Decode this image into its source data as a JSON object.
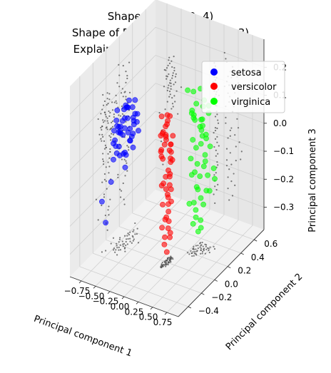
{
  "chart_data": {
    "type": "scatter",
    "title_lines": [
      "Shape of 𝑥: (150, 4)",
      "Shape of PCA transform: (150, 3)",
      "Explained variance ratio: 0.9936"
    ],
    "xlabel": "Principal component 1",
    "ylabel": "Principal component 2",
    "zlabel": "Principal component 3",
    "xlim": [
      -0.95,
      0.95
    ],
    "ylim": [
      -0.55,
      0.75
    ],
    "zlim": [
      -0.38,
      0.3
    ],
    "x_ticks": [
      -0.75,
      -0.5,
      -0.25,
      0.0,
      0.25,
      0.5,
      0.75
    ],
    "x_tick_labels": [
      "−0.75",
      "−0.50",
      "−0.25",
      "0.00",
      "0.25",
      "0.50",
      "0.75"
    ],
    "y_ticks": [
      -0.4,
      -0.2,
      0.0,
      0.2,
      0.4,
      0.6
    ],
    "y_tick_labels": [
      "−0.4",
      "−0.2",
      "0.0",
      "0.2",
      "0.4",
      "0.6"
    ],
    "z_ticks": [
      -0.3,
      -0.2,
      -0.1,
      0.0,
      0.1,
      0.2
    ],
    "z_tick_labels": [
      "−0.3",
      "−0.2",
      "−0.1",
      "0.0",
      "0.1",
      "0.2"
    ],
    "grid": true,
    "legend_position": "top-right",
    "series": [
      {
        "name": "setosa",
        "color": "#0000ff",
        "points": [
          [
            -0.72,
            0.05,
            0.05
          ],
          [
            -0.68,
            0.1,
            0.0
          ],
          [
            -0.74,
            -0.02,
            -0.05
          ],
          [
            -0.66,
            0.15,
            0.08
          ],
          [
            -0.7,
            0.0,
            0.02
          ],
          [
            -0.62,
            0.08,
            -0.02
          ],
          [
            -0.76,
            0.12,
            0.04
          ],
          [
            -0.64,
            -0.05,
            0.06
          ],
          [
            -0.71,
            0.2,
            -0.03
          ],
          [
            -0.67,
            0.03,
            0.1
          ],
          [
            -0.73,
            -0.08,
            0.0
          ],
          [
            -0.6,
            0.12,
            0.03
          ],
          [
            -0.78,
            0.06,
            -0.08
          ],
          [
            -0.65,
            0.18,
            0.05
          ],
          [
            -0.69,
            -0.03,
            -0.02
          ],
          [
            -0.63,
            0.02,
            0.12
          ],
          [
            -0.75,
            0.16,
            0.07
          ],
          [
            -0.61,
            -0.01,
            -0.04
          ],
          [
            -0.72,
            0.22,
            0.01
          ],
          [
            -0.66,
            -0.06,
            0.04
          ],
          [
            -0.7,
            0.09,
            0.09
          ],
          [
            -0.58,
            0.07,
            0.0
          ],
          [
            -0.77,
            0.0,
            0.06
          ],
          [
            -0.64,
            0.14,
            -0.06
          ],
          [
            -0.68,
            -0.1,
            0.02
          ],
          [
            -0.74,
            0.18,
            -0.01
          ],
          [
            -0.62,
            0.04,
            0.07
          ],
          [
            -0.71,
            -0.04,
            0.11
          ],
          [
            -0.66,
            0.11,
            -0.03
          ],
          [
            -0.69,
            0.25,
            0.03
          ],
          [
            -0.6,
            -0.02,
            0.05
          ],
          [
            -0.8,
            0.08,
            0.0
          ],
          [
            -0.67,
            0.06,
            -0.07
          ],
          [
            -0.73,
            0.13,
            0.08
          ],
          [
            -0.63,
            0.19,
            0.02
          ],
          [
            -0.7,
            -0.07,
            -0.01
          ],
          [
            -0.76,
            0.03,
            0.03
          ],
          [
            -0.59,
            0.1,
            0.06
          ],
          [
            -0.65,
            0.0,
            -0.05
          ],
          [
            -0.72,
            0.15,
            0.1
          ],
          [
            -0.68,
            0.02,
            0.01
          ],
          [
            -0.74,
            -0.06,
            0.04
          ],
          [
            -0.85,
            -0.15,
            -0.2
          ],
          [
            -0.82,
            -0.12,
            -0.28
          ],
          [
            -0.5,
            0.1,
            0.02
          ],
          [
            -0.88,
            0.05,
            -0.1
          ],
          [
            -0.84,
            -0.02,
            -0.16
          ],
          [
            -0.56,
            -0.05,
            -0.08
          ],
          [
            -0.79,
            0.3,
            0.06
          ],
          [
            -0.62,
            -0.12,
            0.08
          ]
        ]
      },
      {
        "name": "versicolor",
        "color": "#ff0000",
        "points": [
          [
            0.08,
            0.02,
            0.05
          ],
          [
            0.1,
            -0.05,
            0.0
          ],
          [
            0.12,
            0.05,
            -0.02
          ],
          [
            0.06,
            -0.02,
            0.08
          ],
          [
            0.14,
            0.0,
            -0.05
          ],
          [
            0.09,
            0.08,
            0.02
          ],
          [
            0.11,
            -0.08,
            0.04
          ],
          [
            0.13,
            0.03,
            -0.08
          ],
          [
            0.07,
            -0.04,
            -0.1
          ],
          [
            0.15,
            0.06,
            0.06
          ],
          [
            0.1,
            0.0,
            -0.12
          ],
          [
            0.12,
            -0.06,
            0.1
          ],
          [
            0.08,
            0.04,
            -0.15
          ],
          [
            0.14,
            -0.02,
            0.12
          ],
          [
            0.11,
            0.07,
            -0.18
          ],
          [
            0.09,
            -0.07,
            0.03
          ],
          [
            0.13,
            0.01,
            -0.2
          ],
          [
            0.07,
            0.05,
            0.11
          ],
          [
            0.12,
            -0.03,
            -0.22
          ],
          [
            0.1,
            0.02,
            0.14
          ],
          [
            0.15,
            -0.05,
            -0.06
          ],
          [
            0.08,
            0.06,
            -0.25
          ],
          [
            0.11,
            -0.01,
            0.07
          ],
          [
            0.14,
            0.03,
            -0.28
          ],
          [
            0.09,
            -0.06,
            0.01
          ],
          [
            0.12,
            0.04,
            -0.3
          ],
          [
            0.1,
            -0.08,
            0.09
          ],
          [
            0.13,
            0.07,
            -0.03
          ],
          [
            0.07,
            0.0,
            -0.32
          ],
          [
            0.11,
            0.05,
            0.13
          ],
          [
            0.16,
            -0.02,
            -0.14
          ],
          [
            0.09,
            0.02,
            -0.35
          ],
          [
            0.12,
            -0.04,
            0.05
          ],
          [
            0.1,
            0.06,
            -0.08
          ],
          [
            0.14,
            0.0,
            -0.17
          ],
          [
            0.08,
            -0.05,
            0.15
          ],
          [
            0.13,
            0.03,
            -0.11
          ],
          [
            0.11,
            -0.07,
            -0.24
          ],
          [
            0.15,
            0.01,
            0.02
          ],
          [
            0.09,
            0.04,
            -0.27
          ],
          [
            0.12,
            -0.02,
            0.08
          ],
          [
            0.1,
            0.07,
            -0.04
          ],
          [
            0.14,
            -0.03,
            -0.21
          ],
          [
            0.08,
            0.01,
            0.1
          ],
          [
            0.13,
            0.05,
            -0.13
          ],
          [
            0.11,
            -0.06,
            -0.16
          ],
          [
            0.16,
            0.02,
            0.04
          ],
          [
            0.09,
            -0.01,
            -0.29
          ],
          [
            0.12,
            0.06,
            0.0
          ],
          [
            0.1,
            -0.04,
            -0.09
          ]
        ]
      },
      {
        "name": "virginica",
        "color": "#00ff00",
        "points": [
          [
            0.3,
            0.25,
            0.1
          ],
          [
            0.35,
            0.3,
            0.05
          ],
          [
            0.28,
            0.22,
            -0.05
          ],
          [
            0.38,
            0.32,
            0.12
          ],
          [
            0.32,
            0.2,
            -0.1
          ],
          [
            0.4,
            0.35,
            0.0
          ],
          [
            0.26,
            0.28,
            0.08
          ],
          [
            0.36,
            0.24,
            -0.15
          ],
          [
            0.42,
            0.3,
            0.15
          ],
          [
            0.3,
            0.18,
            -0.2
          ],
          [
            0.34,
            0.33,
            0.03
          ],
          [
            0.44,
            0.28,
            -0.08
          ],
          [
            0.28,
            0.26,
            0.18
          ],
          [
            0.38,
            0.21,
            -0.25
          ],
          [
            0.32,
            0.36,
            0.06
          ],
          [
            0.46,
            0.32,
            -0.12
          ],
          [
            0.26,
            0.19,
            0.2
          ],
          [
            0.4,
            0.27,
            -0.3
          ],
          [
            0.34,
            0.23,
            0.09
          ],
          [
            0.48,
            0.34,
            -0.02
          ],
          [
            0.3,
            0.31,
            -0.18
          ],
          [
            0.36,
            0.17,
            0.14
          ],
          [
            0.42,
            0.29,
            -0.22
          ],
          [
            0.28,
            0.25,
            0.01
          ],
          [
            0.38,
            0.35,
            -0.06
          ],
          [
            0.5,
            0.3,
            0.11
          ],
          [
            0.32,
            0.22,
            -0.28
          ],
          [
            0.44,
            0.26,
            0.07
          ],
          [
            0.3,
            0.34,
            -0.14
          ],
          [
            0.4,
            0.2,
            0.16
          ],
          [
            0.52,
            0.36,
            -0.1
          ],
          [
            0.34,
            0.28,
            -0.32
          ],
          [
            0.46,
            0.24,
            0.04
          ],
          [
            0.28,
            0.3,
            -0.03
          ],
          [
            0.38,
            0.18,
            -0.19
          ],
          [
            0.48,
            0.32,
            0.13
          ],
          [
            0.32,
            0.26,
            -0.24
          ],
          [
            0.42,
            0.33,
            0.02
          ],
          [
            0.36,
            0.21,
            -0.09
          ],
          [
            0.54,
            0.28,
            -0.16
          ],
          [
            0.3,
            0.35,
            0.17
          ],
          [
            0.44,
            0.23,
            -0.26
          ],
          [
            0.38,
            0.29,
            0.08
          ],
          [
            0.5,
            0.25,
            -0.05
          ],
          [
            0.34,
            0.32,
            -0.21
          ],
          [
            0.4,
            0.27,
            0.0
          ],
          [
            0.56,
            0.34,
            -0.13
          ],
          [
            0.32,
            0.2,
            0.12
          ],
          [
            0.46,
            0.3,
            -0.17
          ],
          [
            0.36,
            0.25,
            -0.07
          ]
        ]
      }
    ]
  },
  "legend": [
    {
      "label": "setosa",
      "color": "#0000ff"
    },
    {
      "label": "versicolor",
      "color": "#ff0000"
    },
    {
      "label": "virginica",
      "color": "#00ff00"
    }
  ]
}
